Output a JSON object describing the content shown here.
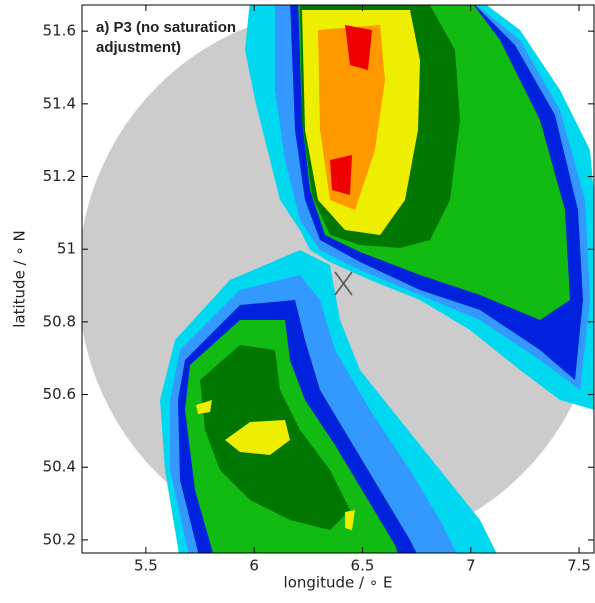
{
  "chart_data": {
    "type": "map",
    "title": [
      "a) P3 (no saturation",
      "adjustment)"
    ],
    "x_label": "longitude / ∘ E",
    "y_label": "latitude / ∘ N",
    "xlim": [
      5.205,
      7.569
    ],
    "ylim": [
      50.164,
      51.672
    ],
    "xticks": [
      5.5,
      6.0,
      6.5,
      7.0,
      7.5
    ],
    "yticks": [
      50.2,
      50.4,
      50.6,
      50.8,
      51.0,
      51.2,
      51.4,
      51.6
    ]
  }
}
